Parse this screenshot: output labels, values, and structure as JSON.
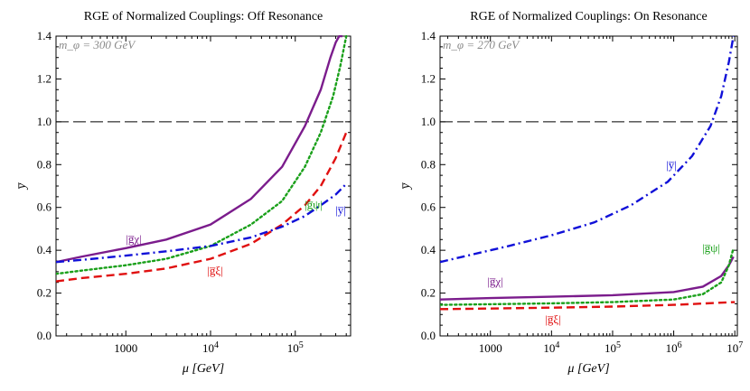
{
  "chart_data": [
    {
      "type": "line",
      "title": "RGE of Normalized Couplings: Off Resonance",
      "xlabel": "μ [GeV]",
      "ylabel": "y̅",
      "xscale": "log",
      "xlim": [
        150,
        450000
      ],
      "ylim": [
        0,
        1.4
      ],
      "yticks": [
        0.0,
        0.2,
        0.4,
        0.6,
        0.8,
        1.0,
        1.2,
        1.4
      ],
      "ytick_labels": [
        "0.0",
        "0.2",
        "0.4",
        "0.6",
        "0.8",
        "1.0",
        "1.2",
        "1.4"
      ],
      "xticks": [
        1000,
        10000,
        100000
      ],
      "xtick_labels": [
        "1000",
        "10^4",
        "10^5"
      ],
      "annotation": "m_φ = 300 GeV",
      "reference_line": 1.0,
      "series": [
        {
          "name": "|g̅χ|",
          "color": "#7B1C8C",
          "style": "solid",
          "x": [
            150,
            300,
            1000,
            3000,
            10000,
            30000,
            70000,
            130000,
            200000,
            260000,
            300000,
            330000,
            360000
          ],
          "y": [
            0.345,
            0.37,
            0.41,
            0.45,
            0.52,
            0.64,
            0.79,
            0.98,
            1.15,
            1.3,
            1.37,
            1.4,
            1.4
          ]
        },
        {
          "name": "|g̅ψ|",
          "color": "#1AA01A",
          "style": "dotted",
          "x": [
            150,
            300,
            1000,
            3000,
            10000,
            30000,
            70000,
            130000,
            200000,
            280000,
            340000,
            400000
          ],
          "y": [
            0.29,
            0.305,
            0.33,
            0.36,
            0.42,
            0.52,
            0.63,
            0.79,
            0.95,
            1.12,
            1.26,
            1.4
          ]
        },
        {
          "name": "|g̅ξ|",
          "color": "#E01010",
          "style": "dashed",
          "x": [
            150,
            300,
            1000,
            3000,
            10000,
            30000,
            70000,
            130000,
            200000,
            300000,
            400000
          ],
          "y": [
            0.255,
            0.27,
            0.29,
            0.315,
            0.36,
            0.43,
            0.52,
            0.61,
            0.7,
            0.83,
            0.95
          ]
        },
        {
          "name": "|y̅|",
          "color": "#1010D8",
          "style": "dashdot",
          "x": [
            150,
            300,
            1000,
            3000,
            10000,
            30000,
            70000,
            130000,
            200000,
            300000,
            400000
          ],
          "y": [
            0.345,
            0.355,
            0.375,
            0.395,
            0.42,
            0.46,
            0.51,
            0.56,
            0.61,
            0.66,
            0.71
          ]
        }
      ],
      "labels": [
        {
          "text": "|g̅χ|",
          "series": "|g̅χ|"
        },
        {
          "text": "|g̅ψ|",
          "series": "|g̅ψ|"
        },
        {
          "text": "|g̅ξ|",
          "series": "|g̅ξ|"
        },
        {
          "text": "|y̅|",
          "series": "|y̅|"
        }
      ]
    },
    {
      "type": "line",
      "title": "RGE of Normalized Couplings: On Resonance",
      "xlabel": "μ [GeV]",
      "ylabel": "y̅",
      "xscale": "log",
      "xlim": [
        150,
        11000000
      ],
      "ylim": [
        0,
        1.4
      ],
      "yticks": [
        0.0,
        0.2,
        0.4,
        0.6,
        0.8,
        1.0,
        1.2,
        1.4
      ],
      "ytick_labels": [
        "0.0",
        "0.2",
        "0.4",
        "0.6",
        "0.8",
        "1.0",
        "1.2",
        "1.4"
      ],
      "xticks": [
        1000,
        10000,
        100000,
        1000000,
        10000000
      ],
      "xtick_labels": [
        "1000",
        "10^4",
        "10^5",
        "10^6",
        "10^7"
      ],
      "annotation": "m_φ = 270 GeV",
      "reference_line": 1.0,
      "series": [
        {
          "name": "|y̅|",
          "color": "#1010D8",
          "style": "dashdot",
          "x": [
            150,
            500,
            2000,
            10000,
            50000,
            200000,
            800000,
            2000000,
            4000000,
            6000000,
            8000000,
            9500000
          ],
          "y": [
            0.345,
            0.38,
            0.42,
            0.47,
            0.53,
            0.61,
            0.72,
            0.84,
            0.98,
            1.12,
            1.28,
            1.4
          ]
        },
        {
          "name": "|g̅χ|",
          "color": "#7B1C8C",
          "style": "solid",
          "x": [
            150,
            1000,
            10000,
            100000,
            1000000,
            3000000,
            6000000,
            8000000,
            9500000
          ],
          "y": [
            0.17,
            0.177,
            0.183,
            0.19,
            0.205,
            0.23,
            0.28,
            0.33,
            0.37
          ]
        },
        {
          "name": "|g̅ψ|",
          "color": "#1AA01A",
          "style": "dotted",
          "x": [
            150,
            1000,
            10000,
            100000,
            1000000,
            3000000,
            6000000,
            8000000,
            9500000
          ],
          "y": [
            0.145,
            0.148,
            0.152,
            0.158,
            0.17,
            0.195,
            0.25,
            0.33,
            0.41
          ]
        },
        {
          "name": "|g̅ξ|",
          "color": "#E01010",
          "style": "dashed",
          "x": [
            150,
            1000,
            10000,
            100000,
            1000000,
            10000000
          ],
          "y": [
            0.125,
            0.128,
            0.132,
            0.137,
            0.145,
            0.158
          ]
        }
      ],
      "labels": [
        {
          "text": "|y̅|",
          "series": "|y̅|"
        },
        {
          "text": "|g̅ψ|",
          "series": "|g̅ψ|"
        },
        {
          "text": "|g̅χ|",
          "series": "|g̅χ|"
        },
        {
          "text": "|g̅ξ|",
          "series": "|g̅ξ|"
        }
      ]
    }
  ]
}
